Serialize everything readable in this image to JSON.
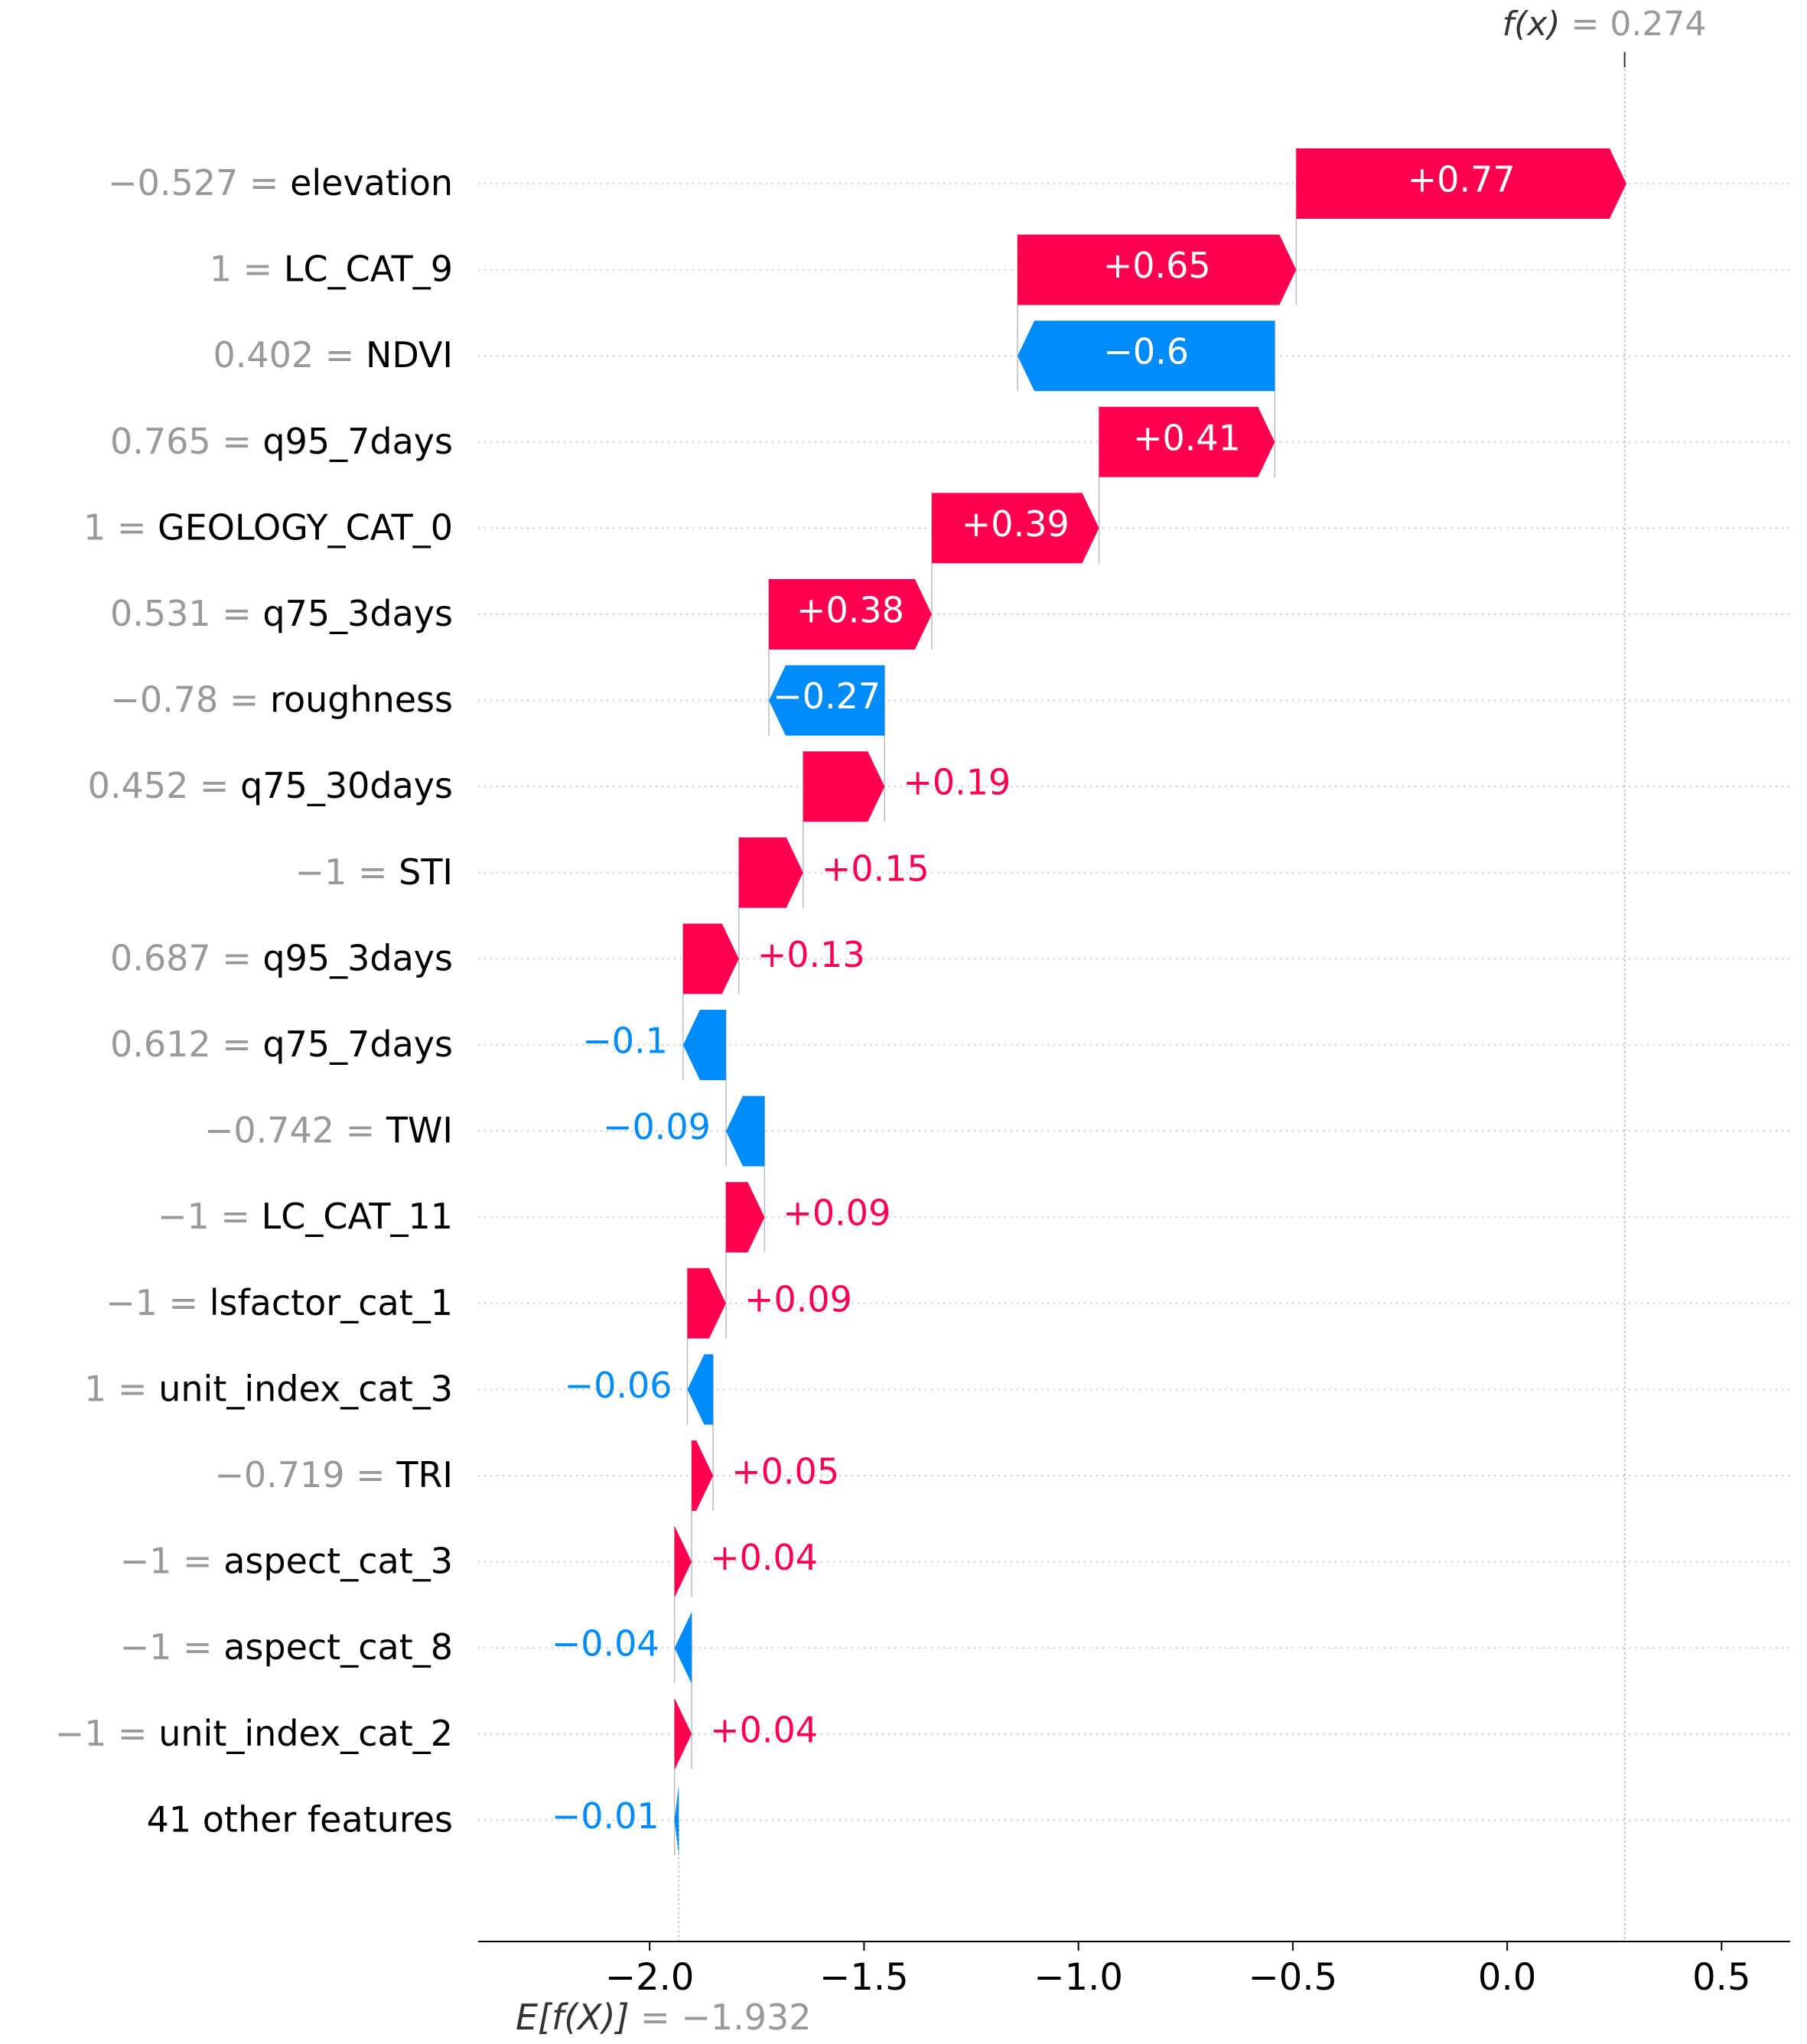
{
  "chart_data": {
    "type": "waterfall",
    "title": "",
    "xlabel": "",
    "xlim": [
      -2.4,
      0.66
    ],
    "x_ticks": [
      {
        "value": -2.0,
        "label": "−2.0"
      },
      {
        "value": -1.5,
        "label": "−1.5"
      },
      {
        "value": -1.0,
        "label": "−1.0"
      },
      {
        "value": -0.5,
        "label": "−0.5"
      },
      {
        "value": 0.0,
        "label": "0.0"
      },
      {
        "value": 0.5,
        "label": "0.5"
      }
    ],
    "base_value": -1.932,
    "base_label_prefix": "E[f(X)]",
    "base_label_value": "= −1.932",
    "output_value": 0.274,
    "output_label_prefix": "f(x)",
    "output_label_value": "= 0.274",
    "colors": {
      "positive": "#ff0051",
      "negative": "#008bfb",
      "value_gray": "#999999",
      "feature_black": "#000000",
      "grid": "#cccccc"
    },
    "features": [
      {
        "value_text": "−0.527",
        "name": "elevation",
        "contribution": 0.77,
        "label": "+0.77"
      },
      {
        "value_text": "1",
        "name": "LC_CAT_9",
        "contribution": 0.65,
        "label": "+0.65"
      },
      {
        "value_text": "0.402",
        "name": "NDVI",
        "contribution": -0.6,
        "label": "−0.6"
      },
      {
        "value_text": "0.765",
        "name": "q95_7days",
        "contribution": 0.41,
        "label": "+0.41"
      },
      {
        "value_text": "1",
        "name": "GEOLOGY_CAT_0",
        "contribution": 0.39,
        "label": "+0.39"
      },
      {
        "value_text": "0.531",
        "name": "q75_3days",
        "contribution": 0.38,
        "label": "+0.38"
      },
      {
        "value_text": "−0.78",
        "name": "roughness",
        "contribution": -0.27,
        "label": "−0.27"
      },
      {
        "value_text": "0.452",
        "name": "q75_30days",
        "contribution": 0.19,
        "label": "+0.19"
      },
      {
        "value_text": "−1",
        "name": "STI",
        "contribution": 0.15,
        "label": "+0.15"
      },
      {
        "value_text": "0.687",
        "name": "q95_3days",
        "contribution": 0.13,
        "label": "+0.13"
      },
      {
        "value_text": "0.612",
        "name": "q75_7days",
        "contribution": -0.1,
        "label": "−0.1"
      },
      {
        "value_text": "−0.742",
        "name": "TWI",
        "contribution": -0.09,
        "label": "−0.09"
      },
      {
        "value_text": "−1",
        "name": "LC_CAT_11",
        "contribution": 0.09,
        "label": "+0.09"
      },
      {
        "value_text": "−1",
        "name": "lsfactor_cat_1",
        "contribution": 0.09,
        "label": "+0.09"
      },
      {
        "value_text": "1",
        "name": "unit_index_cat_3",
        "contribution": -0.06,
        "label": "−0.06"
      },
      {
        "value_text": "−0.719",
        "name": "TRI",
        "contribution": 0.05,
        "label": "+0.05"
      },
      {
        "value_text": "−1",
        "name": "aspect_cat_3",
        "contribution": 0.04,
        "label": "+0.04"
      },
      {
        "value_text": "−1",
        "name": "aspect_cat_8",
        "contribution": -0.04,
        "label": "−0.04"
      },
      {
        "value_text": "−1",
        "name": "unit_index_cat_2",
        "contribution": 0.04,
        "label": "+0.04"
      },
      {
        "value_text": "",
        "name": "41 other features",
        "contribution": -0.01,
        "label": "−0.01"
      }
    ]
  }
}
